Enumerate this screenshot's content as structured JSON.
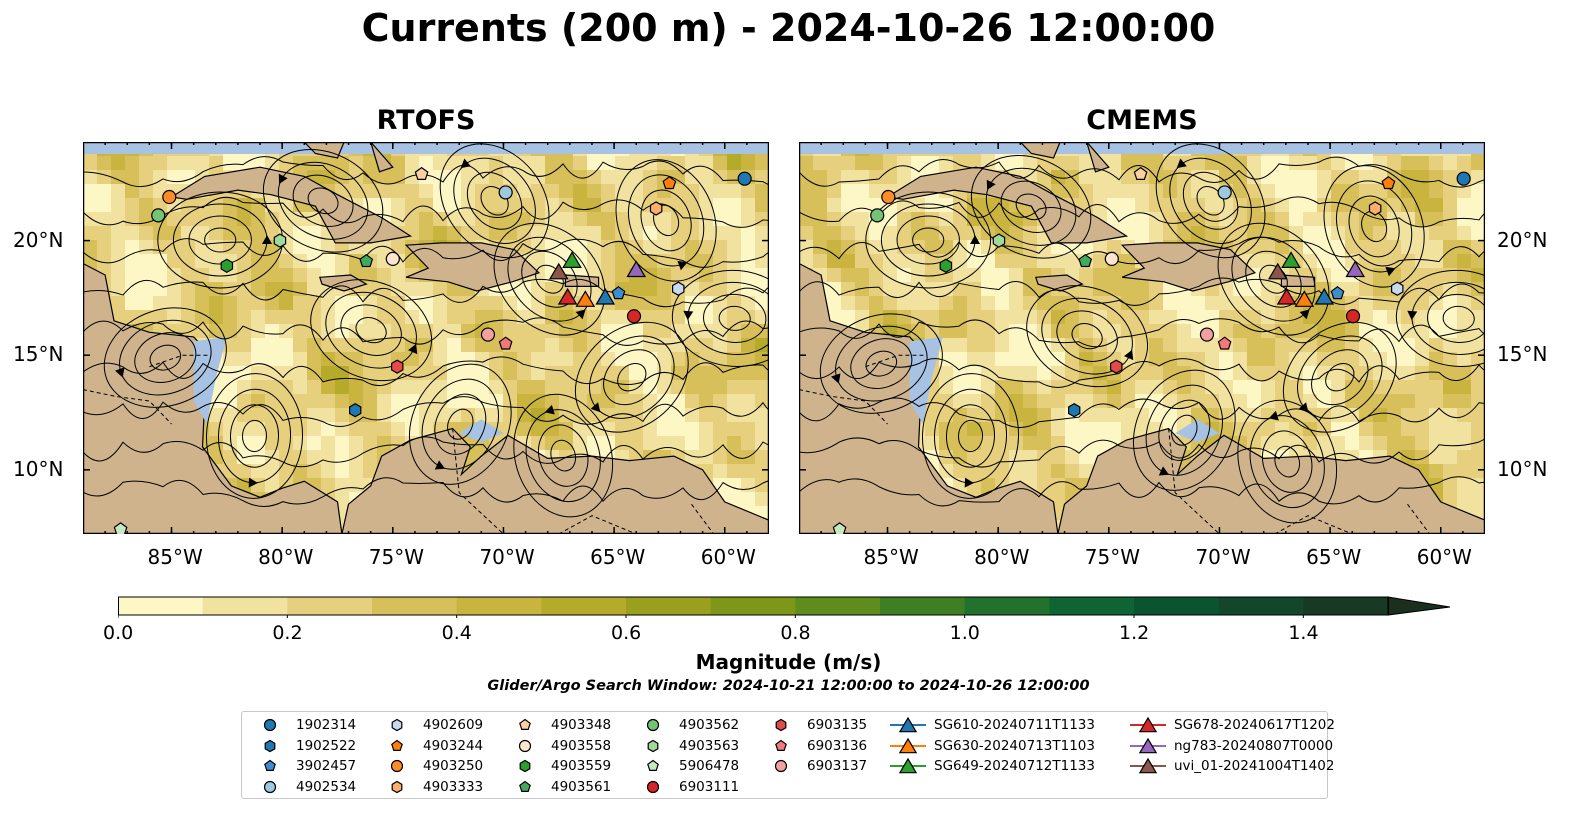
{
  "title": "Currents (200 m) - 2024-10-26 12:00:00",
  "panels": [
    {
      "name": "RTOFS",
      "y_axis_side": "left"
    },
    {
      "name": "CMEMS",
      "y_axis_side": "right"
    }
  ],
  "lon_ticks": [
    "85°W",
    "80°W",
    "75°W",
    "70°W",
    "65°W",
    "60°W"
  ],
  "lat_ticks": [
    "20°N",
    "15°N",
    "10°N"
  ],
  "colorbar": {
    "label": "Magnitude (m/s)",
    "tick_labels": [
      "0.0",
      "0.2",
      "0.4",
      "0.6",
      "0.8",
      "1.0",
      "1.2",
      "1.4"
    ],
    "min": 0.0,
    "max": 1.5,
    "extend": "max",
    "colors": [
      "#fdf7c6",
      "#f1e2a0",
      "#e6cf7d",
      "#d7bf5a",
      "#c8b43f",
      "#b6aa2a",
      "#9aa01d",
      "#7f9718",
      "#5e8c1d",
      "#3f7f24",
      "#22722d",
      "#0e6432",
      "#0a5530",
      "#12472b",
      "#183a25",
      "#1a2f1e"
    ]
  },
  "search_window": "Glider/Argo Search Window: 2024-10-21 12:00:00 to 2024-10-26 12:00:00",
  "land_color": "#cfb38c",
  "ocean_color": "#a7c2e2",
  "legend": [
    {
      "label": "1902314",
      "marker": "circle",
      "color": "#1f77b4"
    },
    {
      "label": "1902522",
      "marker": "hexagon",
      "color": "#1f77b4"
    },
    {
      "label": "3902457",
      "marker": "pentagon",
      "color": "#3a8fd0"
    },
    {
      "label": "4902534",
      "marker": "circle",
      "color": "#9ecae1"
    },
    {
      "label": "4902609",
      "marker": "hexagon",
      "color": "#c6dbef"
    },
    {
      "label": "4903244",
      "marker": "pentagon",
      "color": "#ff7f0e"
    },
    {
      "label": "4903250",
      "marker": "circle",
      "color": "#ff8c28"
    },
    {
      "label": "4903333",
      "marker": "hexagon",
      "color": "#fdae6b"
    },
    {
      "label": "4903348",
      "marker": "pentagon",
      "color": "#fdd0a2"
    },
    {
      "label": "4903558",
      "marker": "circle",
      "color": "#fee6ce"
    },
    {
      "label": "4903559",
      "marker": "hexagon",
      "color": "#2ca02c"
    },
    {
      "label": "4903561",
      "marker": "pentagon",
      "color": "#41ab5d"
    },
    {
      "label": "4903562",
      "marker": "circle",
      "color": "#74c476"
    },
    {
      "label": "4903563",
      "marker": "hexagon",
      "color": "#a1d99b"
    },
    {
      "label": "5906478",
      "marker": "pentagon",
      "color": "#c7e9c0"
    },
    {
      "label": "6903111",
      "marker": "circle",
      "color": "#d62728"
    },
    {
      "label": "6903135",
      "marker": "hexagon",
      "color": "#e34a4a"
    },
    {
      "label": "6903136",
      "marker": "pentagon",
      "color": "#f07a7a"
    },
    {
      "label": "6903137",
      "marker": "circle",
      "color": "#f4a0a0"
    },
    {
      "label": "SG610-20240711T1133",
      "marker": "triangle",
      "color": "#1f77b4"
    },
    {
      "label": "SG630-20240713T1103",
      "marker": "triangle",
      "color": "#ff7f0e"
    },
    {
      "label": "SG649-20240712T1133",
      "marker": "triangle",
      "color": "#2ca02c"
    },
    {
      "label": "SG678-20240617T1202",
      "marker": "triangle",
      "color": "#d62728"
    },
    {
      "label": "ng783-20240807T0000",
      "marker": "triangle",
      "color": "#9467bd"
    },
    {
      "label": "uvi_01-20241004T1402",
      "marker": "triangle",
      "color": "#8c564b"
    }
  ],
  "platforms": [
    {
      "id": "1902314",
      "lon": -59.1,
      "lat": 22.7
    },
    {
      "id": "1902522",
      "lon": -76.7,
      "lat": 12.6
    },
    {
      "id": "3902457",
      "lon": -64.8,
      "lat": 17.7
    },
    {
      "id": "4902534",
      "lon": -69.9,
      "lat": 22.1
    },
    {
      "id": "4902609",
      "lon": -62.1,
      "lat": 17.9
    },
    {
      "id": "4903244",
      "lon": -62.5,
      "lat": 22.5
    },
    {
      "id": "4903250",
      "lon": -85.1,
      "lat": 21.9
    },
    {
      "id": "4903333",
      "lon": -63.1,
      "lat": 21.4
    },
    {
      "id": "4903348",
      "lon": -73.7,
      "lat": 22.9
    },
    {
      "id": "4903558",
      "lon": -75.0,
      "lat": 19.2
    },
    {
      "id": "4903559",
      "lon": -82.5,
      "lat": 18.9
    },
    {
      "id": "4903561",
      "lon": -76.2,
      "lat": 19.1
    },
    {
      "id": "4903562",
      "lon": -85.6,
      "lat": 21.1
    },
    {
      "id": "4903563",
      "lon": -80.1,
      "lat": 20.0
    },
    {
      "id": "5906478",
      "lon": -87.3,
      "lat": 7.4
    },
    {
      "id": "6903111",
      "lon": -64.1,
      "lat": 16.7
    },
    {
      "id": "6903135",
      "lon": -74.8,
      "lat": 14.5
    },
    {
      "id": "6903136",
      "lon": -69.9,
      "lat": 15.5
    },
    {
      "id": "6903137",
      "lon": -70.7,
      "lat": 15.9
    },
    {
      "id": "SG610-20240711T1133",
      "lon": -65.4,
      "lat": 17.5
    },
    {
      "id": "SG630-20240713T1103",
      "lon": -66.3,
      "lat": 17.4
    },
    {
      "id": "SG649-20240712T1133",
      "lon": -66.9,
      "lat": 19.1
    },
    {
      "id": "SG678-20240617T1202",
      "lon": -67.1,
      "lat": 17.5
    },
    {
      "id": "ng783-20240807T0000",
      "lon": -64.0,
      "lat": 18.7
    },
    {
      "id": "uvi_01-20241004T1402",
      "lon": -67.5,
      "lat": 18.6
    }
  ]
}
